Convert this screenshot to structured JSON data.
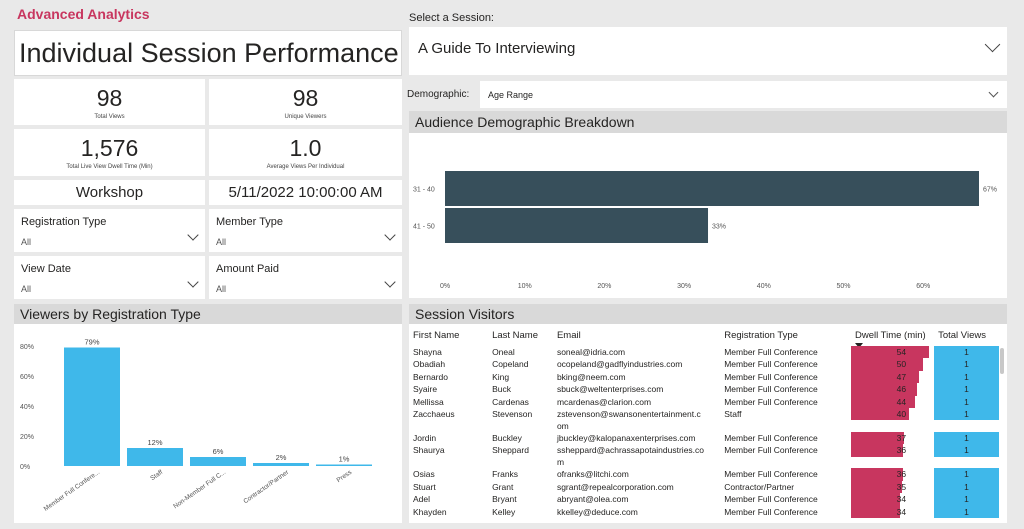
{
  "app": {
    "title": "Advanced Analytics"
  },
  "page_title": "Individual Session Performance",
  "kpis": {
    "total_views": {
      "value": "98",
      "label": "Total Views"
    },
    "unique_viewers": {
      "value": "98",
      "label": "Unique Viewers"
    },
    "dwell_time": {
      "value": "1,576",
      "label": "Total Live View Dwell Time (Min)"
    },
    "avg_views": {
      "value": "1.0",
      "label": "Average Views Per Individual"
    }
  },
  "session_type": "Workshop",
  "session_datetime": "5/11/2022 10:00:00 AM",
  "filters": {
    "registration_type": {
      "label": "Registration Type",
      "value": "All"
    },
    "member_type": {
      "label": "Member Type",
      "value": "All"
    },
    "view_date": {
      "label": "View Date",
      "value": "All"
    },
    "amount_paid": {
      "label": "Amount Paid",
      "value": "All"
    }
  },
  "session_select": {
    "label": "Select a Session:",
    "value": "A Guide To Interviewing"
  },
  "demographic_select": {
    "label": "Demographic:",
    "value": "Age Range"
  },
  "demographic_chart_title": "Audience Demographic Breakdown",
  "registration_chart_title": "Viewers by Registration Type",
  "visitors_title": "Session Visitors",
  "colors": {
    "brand": "#c8365f",
    "bar_dark": "#374f5b",
    "bar_light": "#3fb8ea",
    "dwell": "#c8365f"
  },
  "icons": {
    "dropdown": "chevron-down-icon",
    "sort": "sort-desc-icon"
  },
  "chart_data": [
    {
      "type": "bar",
      "orientation": "horizontal",
      "title": "Audience Demographic Breakdown",
      "categories": [
        "31 - 40",
        "41 - 50"
      ],
      "values": [
        67,
        33
      ],
      "data_labels": [
        "67%",
        "33%"
      ],
      "xlim": [
        0,
        67
      ],
      "xticks": [
        "0%",
        "10%",
        "20%",
        "30%",
        "40%",
        "50%",
        "60%"
      ],
      "grid": false
    },
    {
      "type": "bar",
      "title": "Viewers by Registration Type",
      "categories": [
        "Member Full Confere...",
        "Staff",
        "Non-Member Full C...",
        "Contractor/Partner",
        "Press"
      ],
      "values": [
        79,
        12,
        6,
        2,
        1
      ],
      "data_labels": [
        "79%",
        "12%",
        "6%",
        "2%",
        "1%"
      ],
      "ylim": [
        0,
        80
      ],
      "yticks": [
        "0%",
        "20%",
        "40%",
        "60%",
        "80%"
      ],
      "grid": false
    }
  ],
  "visitors": {
    "columns": [
      "First Name",
      "Last Name",
      "Email",
      "Registration Type",
      "Dwell Time (min)",
      "Total Views"
    ],
    "dwell_max": 54,
    "rows": [
      {
        "first": "Shayna",
        "last": "Oneal",
        "email": "soneal@idria.com",
        "reg": "Member Full Conference",
        "dwell": 54,
        "views": 1
      },
      {
        "first": "Obadiah",
        "last": "Copeland",
        "email": "ocopeland@gadflyindustries.com",
        "reg": "Member Full Conference",
        "dwell": 50,
        "views": 1
      },
      {
        "first": "Bernardo",
        "last": "King",
        "email": "bking@neem.com",
        "reg": "Member Full Conference",
        "dwell": 47,
        "views": 1
      },
      {
        "first": "Syaire",
        "last": "Buck",
        "email": "sbuck@weltenterprises.com",
        "reg": "Member Full Conference",
        "dwell": 46,
        "views": 1
      },
      {
        "first": "Mellissa",
        "last": "Cardenas",
        "email": "mcardenas@clarion.com",
        "reg": "Member Full Conference",
        "dwell": 44,
        "views": 1
      },
      {
        "first": "Zacchaeus",
        "last": "Stevenson",
        "email": "zstevenson@swansonentertainment.c",
        "email2": "om",
        "reg": "Staff",
        "dwell": 40,
        "views": 1
      },
      {
        "first": "Jordin",
        "last": "Buckley",
        "email": "jbuckley@kalopanaxenterprises.com",
        "reg": "Member Full Conference",
        "dwell": 37,
        "views": 1
      },
      {
        "first": "Shaurya",
        "last": "Sheppard",
        "email": "ssheppard@achrassapotaindustries.co",
        "email2": "m",
        "reg": "Member Full Conference",
        "dwell": 36,
        "views": 1
      },
      {
        "first": "Osias",
        "last": "Franks",
        "email": "ofranks@litchi.com",
        "reg": "Member Full Conference",
        "dwell": 36,
        "views": 1
      },
      {
        "first": "Stuart",
        "last": "Grant",
        "email": "sgrant@repealcorporation.com",
        "reg": "Contractor/Partner",
        "dwell": 35,
        "views": 1
      },
      {
        "first": "Adel",
        "last": "Bryant",
        "email": "abryant@olea.com",
        "reg": "Member Full Conference",
        "dwell": 34,
        "views": 1
      },
      {
        "first": "Khayden",
        "last": "Kelley",
        "email": "kkelley@deduce.com",
        "reg": "Member Full Conference",
        "dwell": 34,
        "views": 1
      }
    ]
  }
}
